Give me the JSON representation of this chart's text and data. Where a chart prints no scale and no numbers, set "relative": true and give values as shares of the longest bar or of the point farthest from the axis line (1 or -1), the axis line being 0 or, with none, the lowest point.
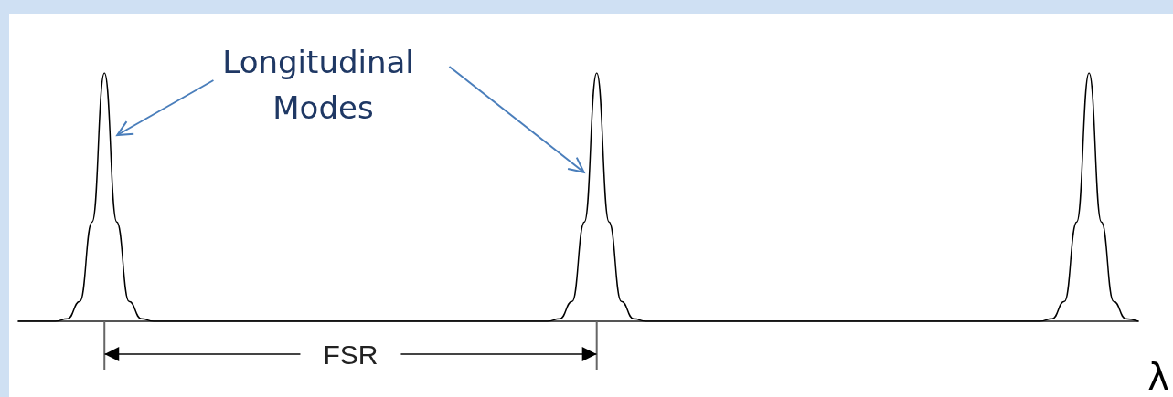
{
  "chart_data": {
    "type": "line",
    "relative": true,
    "xlabel": "λ",
    "color": "#000000",
    "marker": "none",
    "grid": false,
    "annotations": [
      "Longitudinal Modes",
      "FSR"
    ],
    "categories": [
      null,
      null,
      null,
      null,
      null,
      null,
      null,
      null,
      null,
      null,
      null,
      null,
      null,
      null,
      null,
      null,
      null,
      null,
      null,
      null,
      null,
      null,
      null,
      null,
      null,
      null,
      null,
      null,
      null,
      null,
      null,
      null,
      null,
      null,
      null,
      null,
      null,
      null,
      null,
      null,
      null,
      null,
      null,
      null,
      null,
      null,
      null,
      null,
      null,
      null,
      null,
      null,
      null,
      null,
      null,
      null,
      null,
      null,
      null,
      null,
      null,
      null,
      null,
      null,
      null,
      null,
      null,
      null,
      null,
      null,
      null,
      null,
      null,
      null,
      null,
      null,
      null,
      null,
      null,
      null,
      null,
      null,
      null,
      null,
      null,
      null,
      null,
      null,
      null,
      null,
      null,
      null
    ],
    "values": [
      0,
      0,
      0,
      0,
      0.01,
      0.08,
      0.4,
      1,
      0.4,
      0.08,
      0.01,
      0,
      0,
      0,
      0,
      0,
      0,
      0,
      0,
      0,
      0,
      0,
      0,
      0,
      0,
      0,
      0,
      0,
      0,
      0,
      0,
      0,
      0,
      0,
      0,
      0,
      0,
      0,
      0,
      0,
      0,
      0,
      0,
      0,
      0.01,
      0.08,
      0.4,
      1,
      0.4,
      0.08,
      0.01,
      0,
      0,
      0,
      0,
      0,
      0,
      0,
      0,
      0,
      0,
      0,
      0,
      0,
      0,
      0,
      0,
      0,
      0,
      0,
      0,
      0,
      0,
      0,
      0,
      0,
      0,
      0,
      0,
      0,
      0,
      0,
      0,
      0,
      0.01,
      0.08,
      0.4,
      1,
      0.4,
      0.08,
      0.01,
      0
    ]
  }
}
